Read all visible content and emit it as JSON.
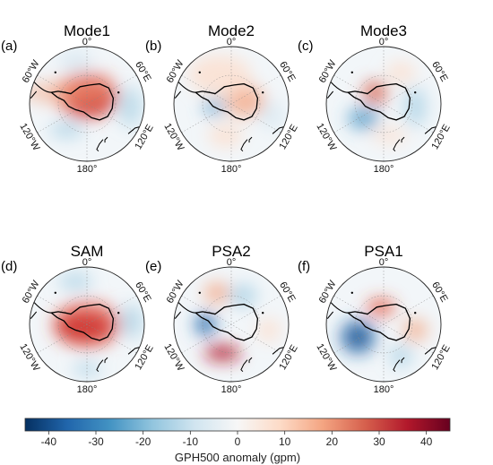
{
  "panels": [
    {
      "letter": "(a)",
      "title": "Mode1",
      "lon_labels": {
        "top": "0°",
        "upper_left": "60°W",
        "upper_right": "60°E",
        "lower_left": "120°W",
        "lower_right": "120°E",
        "bottom": "180°"
      },
      "blobs": [
        {
          "color": "#b2182b",
          "opacity": 0.85,
          "rx": 0.42,
          "ry": 0.3,
          "ux": 0.05,
          "uy": -0.1
        },
        {
          "color": "#e34a33",
          "opacity": 0.6,
          "rx": 0.55,
          "ry": 0.42,
          "ux": 0.0,
          "uy": -0.15
        },
        {
          "color": "#f4a582",
          "opacity": 0.55,
          "rx": 0.8,
          "ry": 0.2,
          "ux": -0.35,
          "uy": -0.2
        },
        {
          "color": "#92c5de",
          "opacity": 0.55,
          "rx": 0.3,
          "ry": 0.15,
          "ux": -0.35,
          "uy": 0.45
        },
        {
          "color": "#92c5de",
          "opacity": 0.5,
          "rx": 0.22,
          "ry": 0.35,
          "ux": 0.75,
          "uy": 0.05
        },
        {
          "color": "#d1e5f0",
          "opacity": 0.6,
          "rx": 0.3,
          "ry": 0.2,
          "ux": -0.2,
          "uy": -0.75
        }
      ]
    },
    {
      "letter": "(b)",
      "title": "Mode2",
      "lon_labels": {
        "top": "0°",
        "upper_left": "60°W",
        "upper_right": "60°E",
        "lower_left": "120°W",
        "lower_right": "120°E",
        "bottom": "180°"
      },
      "blobs": [
        {
          "color": "#f4a582",
          "opacity": 0.75,
          "rx": 0.35,
          "ry": 0.28,
          "ux": 0.25,
          "uy": -0.05
        },
        {
          "color": "#fddbc7",
          "opacity": 0.7,
          "rx": 0.55,
          "ry": 0.35,
          "ux": -0.2,
          "uy": -0.5
        },
        {
          "color": "#4393c3",
          "opacity": 0.55,
          "rx": 0.2,
          "ry": 0.18,
          "ux": -0.3,
          "uy": 0.05
        },
        {
          "color": "#fddbc7",
          "opacity": 0.7,
          "rx": 0.3,
          "ry": 0.2,
          "ux": -0.1,
          "uy": 0.55
        },
        {
          "color": "#d1e5f0",
          "opacity": 0.6,
          "rx": 0.22,
          "ry": 0.25,
          "ux": 0.7,
          "uy": 0.2
        }
      ]
    },
    {
      "letter": "(c)",
      "title": "Mode3",
      "lon_labels": {
        "top": "0°",
        "upper_left": "60°W",
        "upper_right": "60°E",
        "lower_left": "120°W",
        "lower_right": "120°E",
        "bottom": "180°"
      },
      "blobs": [
        {
          "color": "#d6604d",
          "opacity": 0.8,
          "rx": 0.22,
          "ry": 0.2,
          "ux": -0.15,
          "uy": -0.2
        },
        {
          "color": "#4393c3",
          "opacity": 0.7,
          "rx": 0.28,
          "ry": 0.2,
          "ux": -0.35,
          "uy": 0.25
        },
        {
          "color": "#92c5de",
          "opacity": 0.55,
          "rx": 0.2,
          "ry": 0.35,
          "ux": 0.55,
          "uy": 0.05
        },
        {
          "color": "#fddbc7",
          "opacity": 0.7,
          "rx": 0.25,
          "ry": 0.18,
          "ux": 0.3,
          "uy": -0.55
        },
        {
          "color": "#fddbc7",
          "opacity": 0.6,
          "rx": 0.3,
          "ry": 0.15,
          "ux": 0.1,
          "uy": 0.55
        }
      ]
    },
    {
      "letter": "(d)",
      "title": "SAM",
      "lon_labels": {
        "top": "0°",
        "upper_left": "60°W",
        "upper_right": "60°E",
        "lower_left": "120°W",
        "lower_right": "120°E",
        "bottom": "180°"
      },
      "blobs": [
        {
          "color": "#b2182b",
          "opacity": 0.9,
          "rx": 0.48,
          "ry": 0.25,
          "ux": -0.05,
          "uy": 0.05
        },
        {
          "color": "#e34a33",
          "opacity": 0.6,
          "rx": 0.6,
          "ry": 0.42,
          "ux": 0.0,
          "uy": 0.0
        },
        {
          "color": "#92c5de",
          "opacity": 0.55,
          "rx": 0.2,
          "ry": 0.3,
          "ux": 0.78,
          "uy": -0.05
        },
        {
          "color": "#92c5de",
          "opacity": 0.55,
          "rx": 0.3,
          "ry": 0.15,
          "ux": -0.2,
          "uy": -0.75
        },
        {
          "color": "#92c5de",
          "opacity": 0.55,
          "rx": 0.25,
          "ry": 0.12,
          "ux": 0.0,
          "uy": 0.78
        }
      ]
    },
    {
      "letter": "(e)",
      "title": "PSA2",
      "lon_labels": {
        "top": "0°",
        "upper_left": "60°W",
        "upper_right": "60°E",
        "lower_left": "120°W",
        "lower_right": "120°E",
        "bottom": "180°"
      },
      "blobs": [
        {
          "color": "#2166ac",
          "opacity": 0.85,
          "rx": 0.18,
          "ry": 0.2,
          "ux": -0.45,
          "uy": 0.0
        },
        {
          "color": "#b2182b",
          "opacity": 0.85,
          "rx": 0.32,
          "ry": 0.14,
          "ux": -0.15,
          "uy": 0.5
        },
        {
          "color": "#f4a582",
          "opacity": 0.8,
          "rx": 0.22,
          "ry": 0.18,
          "ux": -0.25,
          "uy": -0.55
        },
        {
          "color": "#92c5de",
          "opacity": 0.6,
          "rx": 0.25,
          "ry": 0.2,
          "ux": 0.2,
          "uy": -0.5
        },
        {
          "color": "#fddbc7",
          "opacity": 0.7,
          "rx": 0.2,
          "ry": 0.2,
          "ux": 0.65,
          "uy": 0.1
        }
      ]
    },
    {
      "letter": "(f)",
      "title": "PSA1",
      "lon_labels": {
        "top": "0°",
        "upper_left": "60°W",
        "upper_right": "60°E",
        "lower_left": "120°W",
        "lower_right": "120°E",
        "bottom": "180°"
      },
      "blobs": [
        {
          "color": "#053061",
          "opacity": 0.75,
          "rx": 0.2,
          "ry": 0.2,
          "ux": -0.45,
          "uy": 0.22
        },
        {
          "color": "#2166ac",
          "opacity": 0.6,
          "rx": 0.33,
          "ry": 0.32,
          "ux": -0.45,
          "uy": 0.22
        },
        {
          "color": "#e34a33",
          "opacity": 0.75,
          "rx": 0.25,
          "ry": 0.15,
          "ux": -0.05,
          "uy": -0.3
        },
        {
          "color": "#f4a582",
          "opacity": 0.7,
          "rx": 0.22,
          "ry": 0.2,
          "ux": 0.55,
          "uy": 0.1
        },
        {
          "color": "#92c5de",
          "opacity": 0.55,
          "rx": 0.2,
          "ry": 0.2,
          "ux": 0.3,
          "uy": 0.55
        }
      ]
    }
  ],
  "colorbar": {
    "label": "GPH500 anomaly (gpm)",
    "min": -45,
    "max": 45,
    "ticks": [
      -40,
      -30,
      -20,
      -10,
      0,
      10,
      20,
      30,
      40
    ],
    "colors": [
      "#053061",
      "#2166ac",
      "#4393c3",
      "#92c5de",
      "#d1e5f0",
      "#f7f7f7",
      "#fddbc7",
      "#f4a582",
      "#d6604d",
      "#b2182b",
      "#67001f"
    ]
  }
}
